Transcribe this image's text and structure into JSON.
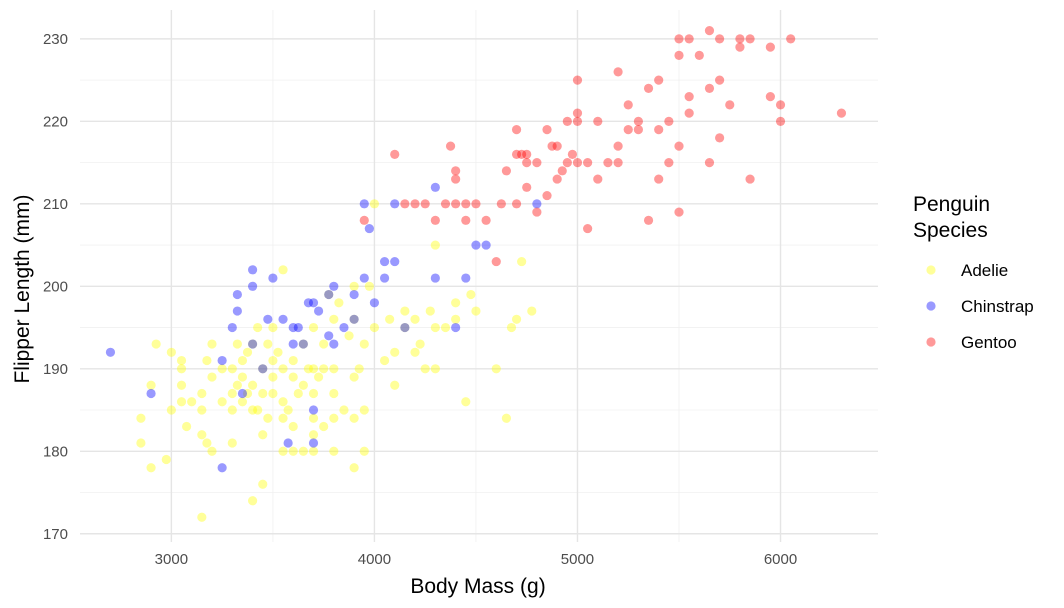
{
  "chart_data": {
    "type": "scatter",
    "xlabel": "Body Mass (g)",
    "ylabel": "Flipper Length (mm)",
    "xlim": [
      2550,
      6480
    ],
    "ylim": [
      169,
      233.5
    ],
    "x_ticks": [
      3000,
      4000,
      5000,
      6000
    ],
    "y_ticks": [
      170,
      180,
      190,
      200,
      210,
      220,
      230
    ],
    "x_tick_labels": [
      "3000",
      "4000",
      "5000",
      "6000"
    ],
    "y_tick_labels": [
      "170",
      "180",
      "190",
      "200",
      "210",
      "220",
      "230"
    ],
    "grid": true,
    "legend": {
      "title_lines": [
        "Penguin",
        "Species"
      ],
      "position": "right"
    },
    "series": [
      {
        "name": "Adelie",
        "color": "#FFFF00",
        "points": [
          [
            2850,
            181
          ],
          [
            2850,
            184
          ],
          [
            2900,
            178
          ],
          [
            2900,
            188
          ],
          [
            2925,
            193
          ],
          [
            2975,
            179
          ],
          [
            3000,
            185
          ],
          [
            3000,
            192
          ],
          [
            3050,
            186
          ],
          [
            3050,
            188
          ],
          [
            3050,
            190
          ],
          [
            3050,
            191
          ],
          [
            3075,
            183
          ],
          [
            3100,
            186
          ],
          [
            3150,
            172
          ],
          [
            3150,
            182
          ],
          [
            3150,
            185
          ],
          [
            3150,
            187
          ],
          [
            3175,
            191
          ],
          [
            3175,
            181
          ],
          [
            3200,
            180
          ],
          [
            3200,
            189
          ],
          [
            3200,
            193
          ],
          [
            3250,
            186
          ],
          [
            3250,
            190
          ],
          [
            3300,
            181
          ],
          [
            3300,
            185
          ],
          [
            3300,
            187
          ],
          [
            3300,
            190
          ],
          [
            3325,
            188
          ],
          [
            3325,
            193
          ],
          [
            3350,
            186
          ],
          [
            3350,
            189
          ],
          [
            3350,
            191
          ],
          [
            3375,
            187
          ],
          [
            3375,
            192
          ],
          [
            3400,
            174
          ],
          [
            3400,
            185
          ],
          [
            3400,
            188
          ],
          [
            3400,
            193
          ],
          [
            3425,
            185
          ],
          [
            3425,
            195
          ],
          [
            3450,
            176
          ],
          [
            3450,
            182
          ],
          [
            3450,
            187
          ],
          [
            3450,
            190
          ],
          [
            3475,
            184
          ],
          [
            3475,
            193
          ],
          [
            3500,
            187
          ],
          [
            3500,
            189
          ],
          [
            3500,
            191
          ],
          [
            3500,
            195
          ],
          [
            3525,
            192
          ],
          [
            3550,
            180
          ],
          [
            3550,
            184
          ],
          [
            3550,
            186
          ],
          [
            3550,
            190
          ],
          [
            3550,
            202
          ],
          [
            3575,
            185
          ],
          [
            3600,
            180
          ],
          [
            3600,
            183
          ],
          [
            3600,
            189
          ],
          [
            3600,
            191
          ],
          [
            3625,
            187
          ],
          [
            3650,
            180
          ],
          [
            3650,
            188
          ],
          [
            3650,
            193
          ],
          [
            3675,
            190
          ],
          [
            3700,
            180
          ],
          [
            3700,
            182
          ],
          [
            3700,
            184
          ],
          [
            3700,
            187
          ],
          [
            3700,
            190
          ],
          [
            3700,
            195
          ],
          [
            3725,
            189
          ],
          [
            3750,
            183
          ],
          [
            3750,
            190
          ],
          [
            3750,
            193
          ],
          [
            3775,
            199
          ],
          [
            3800,
            180
          ],
          [
            3800,
            184
          ],
          [
            3800,
            187
          ],
          [
            3800,
            190
          ],
          [
            3800,
            196
          ],
          [
            3825,
            198
          ],
          [
            3850,
            185
          ],
          [
            3875,
            194
          ],
          [
            3900,
            178
          ],
          [
            3900,
            184
          ],
          [
            3900,
            189
          ],
          [
            3900,
            196
          ],
          [
            3900,
            200
          ],
          [
            3925,
            190
          ],
          [
            3950,
            180
          ],
          [
            3950,
            185
          ],
          [
            3950,
            193
          ],
          [
            3975,
            200
          ],
          [
            4000,
            195
          ],
          [
            4000,
            210
          ],
          [
            4050,
            191
          ],
          [
            4075,
            196
          ],
          [
            4100,
            188
          ],
          [
            4100,
            192
          ],
          [
            4150,
            195
          ],
          [
            4150,
            197
          ],
          [
            4200,
            192
          ],
          [
            4200,
            196
          ],
          [
            4225,
            193
          ],
          [
            4250,
            190
          ],
          [
            4275,
            197
          ],
          [
            4300,
            190
          ],
          [
            4300,
            195
          ],
          [
            4300,
            205
          ],
          [
            4350,
            195
          ],
          [
            4400,
            196
          ],
          [
            4400,
            198
          ],
          [
            4450,
            186
          ],
          [
            4475,
            199
          ],
          [
            4500,
            197
          ],
          [
            4600,
            190
          ],
          [
            4650,
            184
          ],
          [
            4675,
            195
          ],
          [
            4700,
            196
          ],
          [
            4725,
            203
          ],
          [
            4775,
            197
          ]
        ]
      },
      {
        "name": "Chinstrap",
        "color": "#0000FF",
        "points": [
          [
            2700,
            192
          ],
          [
            2900,
            187
          ],
          [
            3250,
            178
          ],
          [
            3250,
            191
          ],
          [
            3300,
            195
          ],
          [
            3325,
            197
          ],
          [
            3325,
            199
          ],
          [
            3350,
            187
          ],
          [
            3400,
            193
          ],
          [
            3400,
            200
          ],
          [
            3400,
            202
          ],
          [
            3450,
            190
          ],
          [
            3475,
            196
          ],
          [
            3500,
            201
          ],
          [
            3550,
            196
          ],
          [
            3575,
            181
          ],
          [
            3600,
            195
          ],
          [
            3600,
            193
          ],
          [
            3625,
            195
          ],
          [
            3650,
            193
          ],
          [
            3675,
            198
          ],
          [
            3700,
            185
          ],
          [
            3700,
            181
          ],
          [
            3700,
            198
          ],
          [
            3725,
            197
          ],
          [
            3775,
            199
          ],
          [
            3775,
            194
          ],
          [
            3800,
            193
          ],
          [
            3800,
            200
          ],
          [
            3850,
            195
          ],
          [
            3900,
            196
          ],
          [
            3900,
            199
          ],
          [
            3950,
            201
          ],
          [
            3950,
            210
          ],
          [
            3975,
            207
          ],
          [
            4000,
            198
          ],
          [
            4050,
            203
          ],
          [
            4050,
            201
          ],
          [
            4100,
            203
          ],
          [
            4100,
            210
          ],
          [
            4150,
            195
          ],
          [
            4300,
            201
          ],
          [
            4300,
            212
          ],
          [
            4400,
            195
          ],
          [
            4450,
            201
          ],
          [
            4500,
            205
          ],
          [
            4550,
            205
          ],
          [
            4800,
            210
          ]
        ]
      },
      {
        "name": "Gentoo",
        "color": "#FF0000",
        "points": [
          [
            3950,
            208
          ],
          [
            4100,
            216
          ],
          [
            4150,
            210
          ],
          [
            4200,
            210
          ],
          [
            4250,
            210
          ],
          [
            4300,
            208
          ],
          [
            4350,
            210
          ],
          [
            4375,
            217
          ],
          [
            4400,
            210
          ],
          [
            4400,
            213
          ],
          [
            4400,
            214
          ],
          [
            4450,
            208
          ],
          [
            4450,
            210
          ],
          [
            4500,
            210
          ],
          [
            4550,
            208
          ],
          [
            4600,
            203
          ],
          [
            4625,
            210
          ],
          [
            4650,
            214
          ],
          [
            4700,
            210
          ],
          [
            4700,
            219
          ],
          [
            4700,
            216
          ],
          [
            4725,
            216
          ],
          [
            4750,
            212
          ],
          [
            4750,
            215
          ],
          [
            4750,
            216
          ],
          [
            4800,
            209
          ],
          [
            4800,
            215
          ],
          [
            4850,
            211
          ],
          [
            4850,
            219
          ],
          [
            4875,
            217
          ],
          [
            4900,
            217
          ],
          [
            4900,
            213
          ],
          [
            4925,
            214
          ],
          [
            4950,
            215
          ],
          [
            4950,
            220
          ],
          [
            4975,
            216
          ],
          [
            5000,
            215
          ],
          [
            5000,
            220
          ],
          [
            5000,
            221
          ],
          [
            5000,
            225
          ],
          [
            5050,
            207
          ],
          [
            5050,
            215
          ],
          [
            5100,
            213
          ],
          [
            5100,
            220
          ],
          [
            5150,
            215
          ],
          [
            5200,
            215
          ],
          [
            5200,
            217
          ],
          [
            5200,
            226
          ],
          [
            5250,
            219
          ],
          [
            5250,
            222
          ],
          [
            5300,
            219
          ],
          [
            5300,
            220
          ],
          [
            5350,
            208
          ],
          [
            5350,
            224
          ],
          [
            5400,
            213
          ],
          [
            5400,
            219
          ],
          [
            5400,
            225
          ],
          [
            5450,
            215
          ],
          [
            5450,
            220
          ],
          [
            5500,
            209
          ],
          [
            5500,
            217
          ],
          [
            5500,
            228
          ],
          [
            5500,
            230
          ],
          [
            5550,
            221
          ],
          [
            5550,
            223
          ],
          [
            5550,
            230
          ],
          [
            5600,
            228
          ],
          [
            5650,
            215
          ],
          [
            5650,
            224
          ],
          [
            5650,
            231
          ],
          [
            5700,
            218
          ],
          [
            5700,
            225
          ],
          [
            5700,
            230
          ],
          [
            5750,
            222
          ],
          [
            5800,
            229
          ],
          [
            5800,
            230
          ],
          [
            5850,
            213
          ],
          [
            5850,
            230
          ],
          [
            5950,
            223
          ],
          [
            5950,
            229
          ],
          [
            6000,
            220
          ],
          [
            6000,
            222
          ],
          [
            6050,
            230
          ],
          [
            6300,
            221
          ]
        ]
      }
    ]
  }
}
